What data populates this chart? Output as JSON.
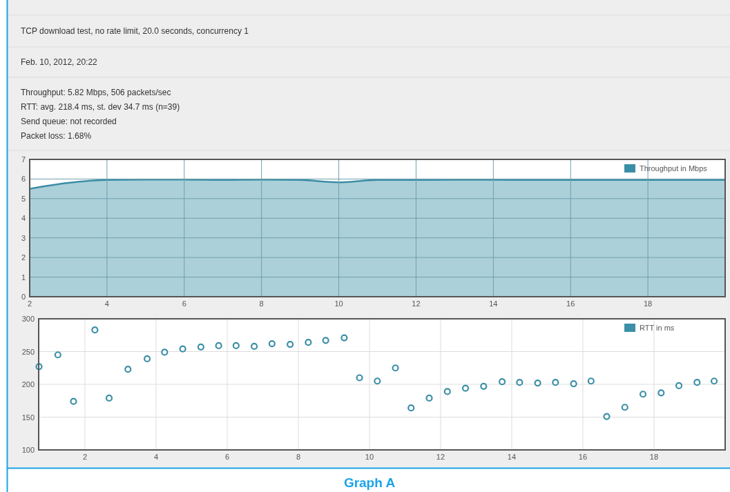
{
  "chart_data": [
    {
      "type": "area",
      "title": "TCP download test, no rate limit, 20.0 seconds, concurrency 1",
      "subtitle": "Feb. 10, 2012, 20:22",
      "annotations": [
        "Throughput: 5.82 Mbps, 506 packets/sec",
        "RTT: avg. 218.4 ms, st. dev 34.7 ms (n=39)",
        "Send queue: not recorded",
        "Packet loss: 1.68%"
      ],
      "x": [
        2,
        3,
        4,
        5,
        6,
        7,
        8,
        9,
        10,
        11,
        12,
        13,
        14,
        15,
        16,
        17,
        18,
        19,
        20
      ],
      "series": [
        {
          "name": "Throughput in Mbps",
          "color": "#3a8ea5",
          "values": [
            5.5,
            5.8,
            5.95,
            5.97,
            5.97,
            5.95,
            5.97,
            5.95,
            5.83,
            5.95,
            5.95,
            5.96,
            5.96,
            5.95,
            5.95,
            5.95,
            5.95,
            5.95,
            5.95
          ]
        }
      ],
      "xlim": [
        2,
        20
      ],
      "ylim": [
        0,
        7
      ],
      "xticks": [
        2,
        4,
        6,
        8,
        10,
        12,
        14,
        16,
        18
      ],
      "yticks": [
        0,
        1,
        2,
        3,
        4,
        5,
        6,
        7
      ],
      "grid": true,
      "legend": "top right"
    },
    {
      "type": "scatter",
      "annotations": [
        "Graph A"
      ],
      "x": [
        0.71,
        1.24,
        1.68,
        2.28,
        2.68,
        3.21,
        3.75,
        4.24,
        4.75,
        5.26,
        5.76,
        6.25,
        6.76,
        7.26,
        7.77,
        8.28,
        8.77,
        9.29,
        9.72,
        10.22,
        10.73,
        11.17,
        11.68,
        12.19,
        12.7,
        13.21,
        13.73,
        14.22,
        14.73,
        15.23,
        15.74,
        16.23,
        16.67,
        17.18,
        17.69,
        18.2,
        18.7,
        19.21,
        19.69
      ],
      "series": [
        {
          "name": "RTT in ms",
          "color": "#3d8fa8",
          "values": [
            227,
            245,
            174,
            283,
            179,
            223,
            239,
            249,
            254,
            257,
            259,
            259,
            258,
            262,
            261,
            264,
            267,
            271,
            210,
            205,
            225,
            164,
            179,
            189,
            194,
            197,
            204,
            203,
            202,
            203,
            201,
            205,
            151,
            165,
            185,
            187,
            198,
            203,
            205
          ]
        }
      ],
      "xlim": [
        0.7,
        20
      ],
      "ylim": [
        100,
        300
      ],
      "xticks": [
        2,
        4,
        6,
        8,
        10,
        12,
        14,
        16,
        18
      ],
      "yticks": [
        100,
        150,
        200,
        250,
        300
      ],
      "grid": true,
      "legend": "top right",
      "marker": "circle"
    }
  ]
}
